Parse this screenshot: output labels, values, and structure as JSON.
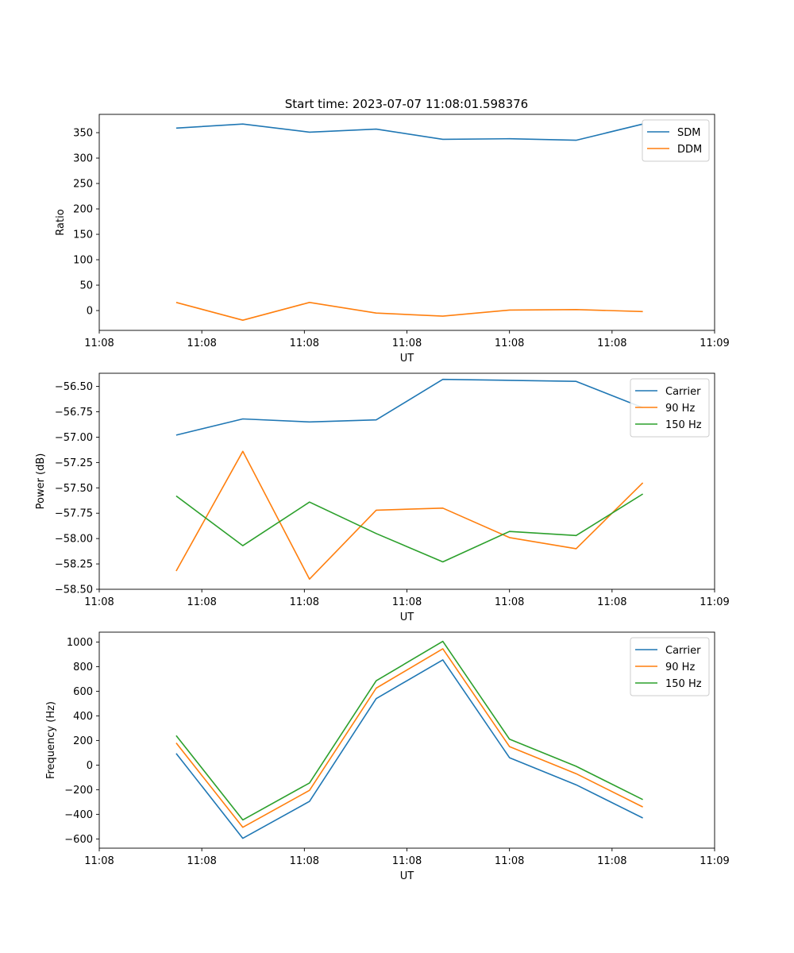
{
  "figure": {
    "title": "Start time: 2023-07-07 11:08:01.598376"
  },
  "chart_data": [
    {
      "type": "line",
      "xlabel": "UT",
      "ylabel": "Ratio",
      "x_tick_labels": [
        "11:08",
        "11:08",
        "11:08",
        "11:08",
        "11:08",
        "11:08",
        "11:09"
      ],
      "x": [
        0.75,
        1.4,
        2.05,
        2.7,
        3.35,
        4.0,
        4.65,
        5.3
      ],
      "xlim": [
        0,
        6
      ],
      "ylim": [
        -39,
        386
      ],
      "yticks": [
        0,
        50,
        100,
        150,
        200,
        250,
        300,
        350
      ],
      "y_tick_labels": [
        "0",
        "50",
        "100",
        "150",
        "200",
        "250",
        "300",
        "350"
      ],
      "legend_position": "top-right",
      "series": [
        {
          "name": "SDM",
          "color": "#1f77b4",
          "values": [
            359,
            367,
            351,
            357,
            337,
            338,
            335,
            367
          ]
        },
        {
          "name": "DDM",
          "color": "#ff7f0e",
          "values": [
            16,
            -19,
            16,
            -5,
            -11,
            1,
            2,
            -2
          ]
        }
      ]
    },
    {
      "type": "line",
      "xlabel": "UT",
      "ylabel": "Power (dB)",
      "x_tick_labels": [
        "11:08",
        "11:08",
        "11:08",
        "11:08",
        "11:08",
        "11:08",
        "11:09"
      ],
      "x": [
        0.75,
        1.4,
        2.05,
        2.7,
        3.35,
        4.0,
        4.65,
        5.3
      ],
      "xlim": [
        0,
        6
      ],
      "ylim": [
        -58.5,
        -56.37
      ],
      "yticks": [
        -58.5,
        -58.25,
        -58.0,
        -57.75,
        -57.5,
        -57.25,
        -57.0,
        -56.75,
        -56.5
      ],
      "y_tick_labels": [
        "−58.50",
        "−58.25",
        "−58.00",
        "−57.75",
        "−57.50",
        "−57.25",
        "−57.00",
        "−56.75",
        "−56.50"
      ],
      "legend_position": "top-right",
      "series": [
        {
          "name": "Carrier",
          "color": "#1f77b4",
          "values": [
            -56.98,
            -56.82,
            -56.85,
            -56.83,
            -56.43,
            -56.44,
            -56.45,
            -56.71
          ]
        },
        {
          "name": "90 Hz",
          "color": "#ff7f0e",
          "values": [
            -58.32,
            -57.14,
            -58.4,
            -57.72,
            -57.7,
            -57.99,
            -58.1,
            -57.45
          ]
        },
        {
          "name": "150 Hz",
          "color": "#2ca02c",
          "values": [
            -57.58,
            -58.07,
            -57.64,
            -57.95,
            -58.23,
            -57.93,
            -57.97,
            -57.56
          ]
        }
      ]
    },
    {
      "type": "line",
      "xlabel": "UT",
      "ylabel": "Frequency (Hz)",
      "x_tick_labels": [
        "11:08",
        "11:08",
        "11:08",
        "11:08",
        "11:08",
        "11:08",
        "11:09"
      ],
      "x": [
        0.75,
        1.4,
        2.05,
        2.7,
        3.35,
        4.0,
        4.65,
        5.3
      ],
      "xlim": [
        0,
        6
      ],
      "ylim": [
        -675,
        1080
      ],
      "yticks": [
        -600,
        -400,
        -200,
        0,
        200,
        400,
        600,
        800,
        1000
      ],
      "y_tick_labels": [
        "−600",
        "−400",
        "−200",
        "0",
        "200",
        "400",
        "600",
        "800",
        "1000"
      ],
      "legend_position": "top-right",
      "series": [
        {
          "name": "Carrier",
          "color": "#1f77b4",
          "values": [
            95,
            -595,
            -295,
            540,
            855,
            60,
            -160,
            -430
          ]
        },
        {
          "name": "90 Hz",
          "color": "#ff7f0e",
          "values": [
            180,
            -505,
            -205,
            625,
            945,
            150,
            -70,
            -340
          ]
        },
        {
          "name": "150 Hz",
          "color": "#2ca02c",
          "values": [
            240,
            -445,
            -145,
            685,
            1005,
            210,
            -10,
            -280
          ]
        }
      ]
    }
  ]
}
